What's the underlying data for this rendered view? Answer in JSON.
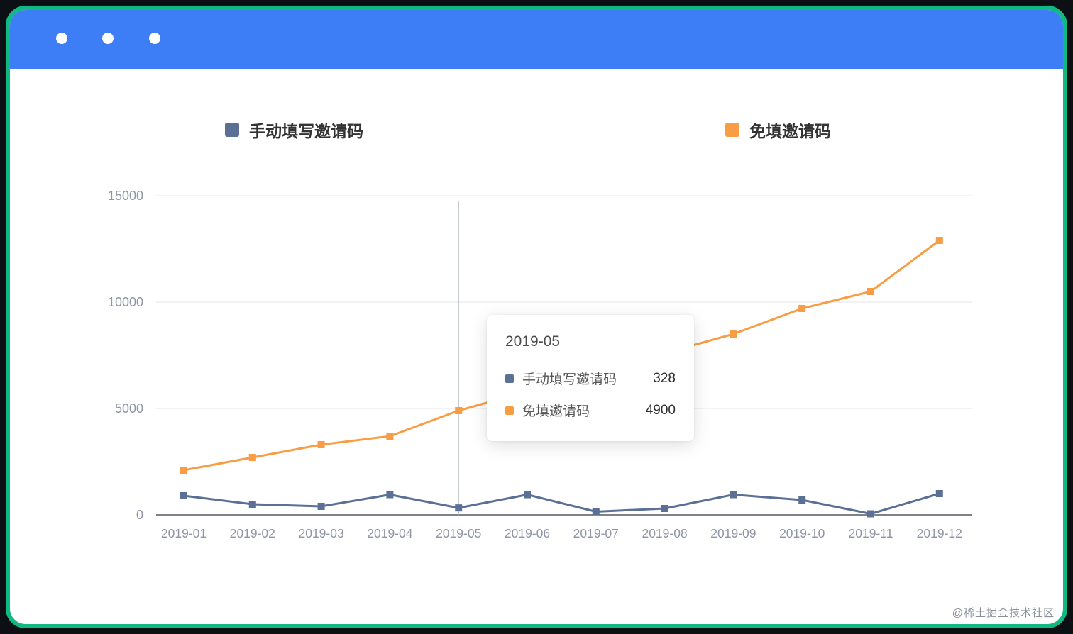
{
  "colors": {
    "frame_border": "#10b981",
    "titlebar": "#3d7df5",
    "series_manual": "#5b7094",
    "series_free": "#f99d45",
    "gridline": "#e3e6ee",
    "axis_line": "#55585f",
    "axis_label": "#8f94a6",
    "crosshair": "#aeb3bd"
  },
  "chart_data": {
    "type": "line",
    "title": "",
    "categories": [
      "2019-01",
      "2019-02",
      "2019-03",
      "2019-04",
      "2019-05",
      "2019-06",
      "2019-07",
      "2019-08",
      "2019-09",
      "2019-10",
      "2019-11",
      "2019-12"
    ],
    "series": [
      {
        "name": "手动填写邀请码",
        "color": "#5b7094",
        "values": [
          900,
          500,
          400,
          950,
          328,
          950,
          150,
          300,
          950,
          700,
          50,
          1000
        ]
      },
      {
        "name": "免填邀请码",
        "color": "#f99d45",
        "values": [
          2100,
          2700,
          3300,
          3700,
          4900,
          5800,
          6700,
          7600,
          8500,
          9700,
          10500,
          12900
        ]
      }
    ],
    "xlabel": "",
    "ylabel": "",
    "ylim": [
      0,
      15000
    ],
    "yticks": [
      0,
      5000,
      10000,
      15000
    ],
    "grid": true,
    "legend_position": "top",
    "marker_shape": "square",
    "crosshair_category": "2019-05"
  },
  "tooltip": {
    "title": "2019-05",
    "rows": [
      {
        "label": "手动填写邀请码",
        "value": "328",
        "color": "#5b7094"
      },
      {
        "label": "免填邀请码",
        "value": "4900",
        "color": "#f99d45"
      }
    ]
  },
  "watermark": "@稀土掘金技术社区"
}
